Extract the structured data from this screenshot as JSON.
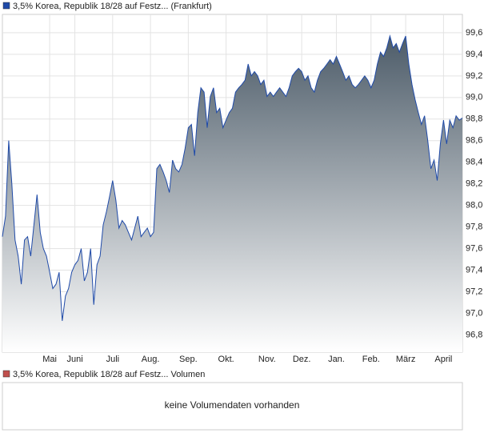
{
  "chart_data": {
    "type": "line",
    "legend": "3,5% Korea, Republik 18/28 auf Festz... (Frankfurt)",
    "series": [
      {
        "name": "3,5% Korea, Republik 18/28 auf Festz... (Frankfurt)",
        "color": "#1f4aa8",
        "values": [
          97.71,
          97.9,
          98.6,
          98.2,
          97.68,
          97.53,
          97.27,
          97.68,
          97.71,
          97.53,
          97.82,
          98.1,
          97.75,
          97.6,
          97.53,
          97.38,
          97.23,
          97.27,
          97.38,
          96.93,
          97.16,
          97.23,
          97.38,
          97.45,
          97.49,
          97.6,
          97.3,
          97.38,
          97.6,
          97.08,
          97.45,
          97.53,
          97.82,
          97.94,
          98.08,
          98.23,
          98.05,
          97.79,
          97.86,
          97.82,
          97.75,
          97.68,
          97.79,
          97.9,
          97.71,
          97.75,
          97.79,
          97.71,
          97.75,
          98.34,
          98.38,
          98.31,
          98.23,
          98.12,
          98.42,
          98.34,
          98.31,
          98.38,
          98.53,
          98.72,
          98.75,
          98.46,
          98.86,
          99.09,
          99.05,
          98.72,
          99.01,
          99.09,
          98.86,
          98.9,
          98.72,
          98.79,
          98.86,
          98.9,
          99.05,
          99.09,
          99.12,
          99.16,
          99.31,
          99.2,
          99.24,
          99.2,
          99.12,
          99.16,
          99.01,
          99.05,
          99.01,
          99.05,
          99.09,
          99.05,
          99.01,
          99.09,
          99.2,
          99.24,
          99.27,
          99.24,
          99.16,
          99.2,
          99.09,
          99.05,
          99.16,
          99.24,
          99.27,
          99.31,
          99.35,
          99.31,
          99.38,
          99.31,
          99.24,
          99.16,
          99.2,
          99.12,
          99.09,
          99.12,
          99.16,
          99.2,
          99.16,
          99.09,
          99.16,
          99.31,
          99.42,
          99.38,
          99.46,
          99.57,
          99.46,
          99.5,
          99.42,
          99.5,
          99.57,
          99.31,
          99.12,
          98.98,
          98.86,
          98.75,
          98.83,
          98.6,
          98.34,
          98.42,
          98.23,
          98.57,
          98.79,
          98.57,
          98.79,
          98.72,
          98.83,
          98.79,
          98.81
        ]
      }
    ],
    "xlim": [
      0,
      146
    ],
    "xticks": [
      {
        "value": 15,
        "label": "Mai"
      },
      {
        "value": 23,
        "label": "Juni"
      },
      {
        "value": 35,
        "label": "Juli"
      },
      {
        "value": 47,
        "label": "Aug."
      },
      {
        "value": 59,
        "label": "Sep."
      },
      {
        "value": 71,
        "label": "Okt."
      },
      {
        "value": 84,
        "label": "Nov."
      },
      {
        "value": 95,
        "label": "Dez."
      },
      {
        "value": 106,
        "label": "Jan."
      },
      {
        "value": 117,
        "label": "Feb."
      },
      {
        "value": 128,
        "label": "März"
      },
      {
        "value": 140,
        "label": "April"
      }
    ],
    "ylim": [
      96.64,
      99.77
    ],
    "yticks": [
      {
        "value": 96.8,
        "label": "96,8"
      },
      {
        "value": 97.0,
        "label": "97,0"
      },
      {
        "value": 97.2,
        "label": "97,2"
      },
      {
        "value": 97.4,
        "label": "97,4"
      },
      {
        "value": 97.6,
        "label": "97,6"
      },
      {
        "value": 97.8,
        "label": "97,8"
      },
      {
        "value": 98.0,
        "label": "98,0"
      },
      {
        "value": 98.2,
        "label": "98,2"
      },
      {
        "value": 98.4,
        "label": "98,4"
      },
      {
        "value": 98.6,
        "label": "98,6"
      },
      {
        "value": 98.8,
        "label": "98,8"
      },
      {
        "value": 99.0,
        "label": "99,0"
      },
      {
        "value": 99.2,
        "label": "99,2"
      },
      {
        "value": 99.4,
        "label": "99,4"
      },
      {
        "value": 99.6,
        "label": "99,6"
      }
    ],
    "grid": true,
    "area_color": "#4d5c69"
  },
  "volume_panel": {
    "legend": "3,5% Korea, Republik 18/28 auf Festz... Volumen",
    "color": "#c0504d",
    "message": "keine Volumendaten vorhanden"
  }
}
